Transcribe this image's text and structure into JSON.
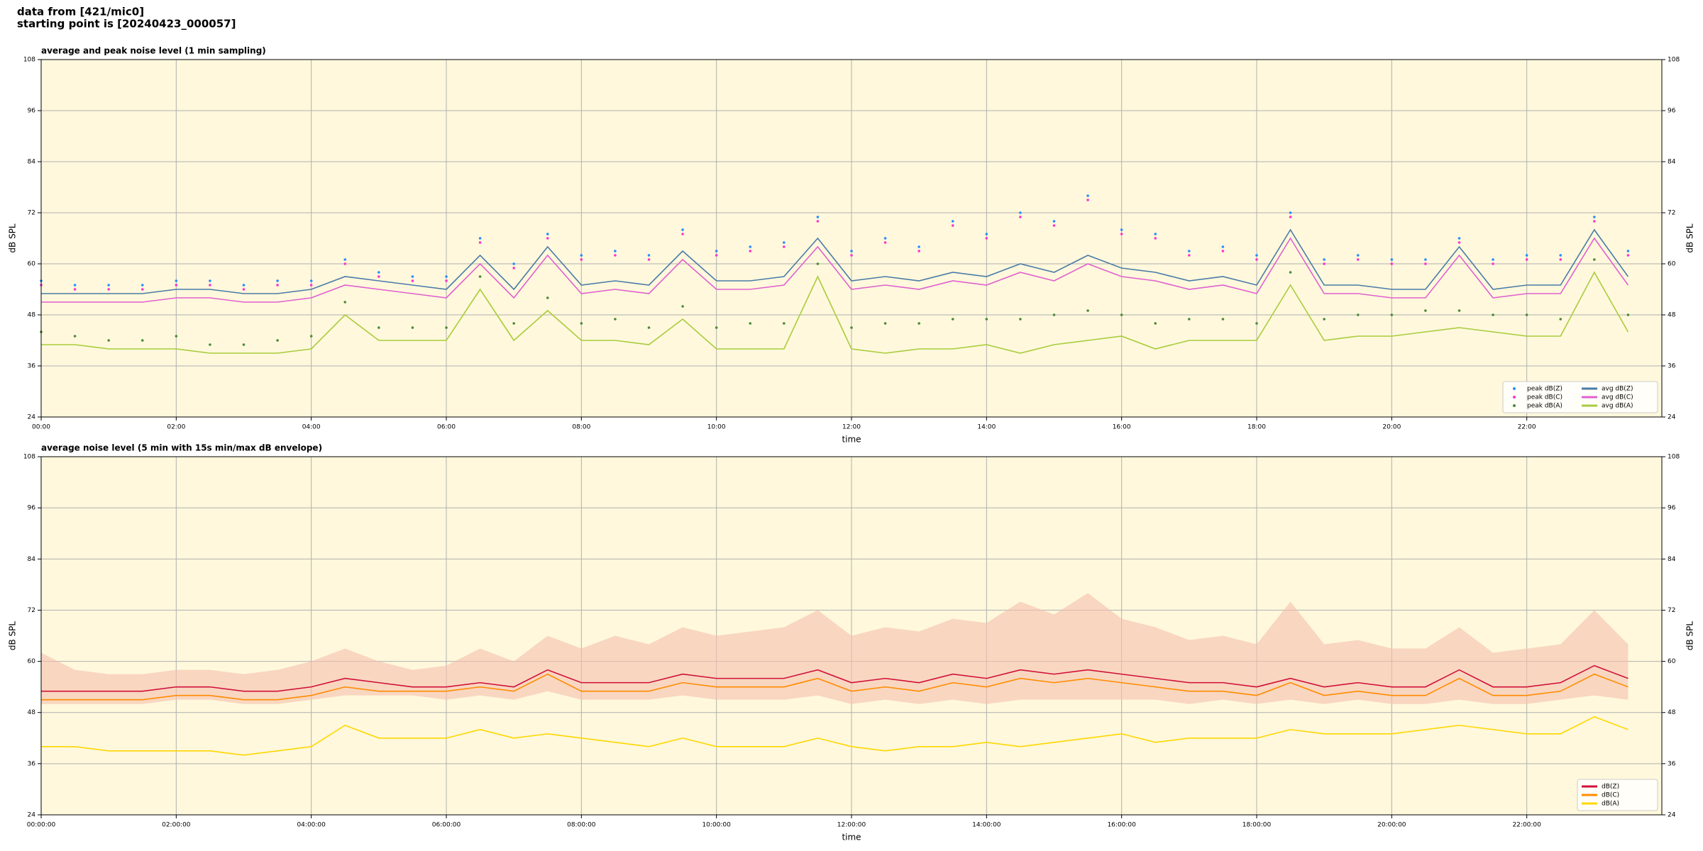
{
  "header": {
    "lines": [
      "data from [421/mic0]",
      "starting point is [20240423_000057]"
    ]
  },
  "chart_data": [
    {
      "type": "line",
      "title": "average and peak noise level (1 min sampling)",
      "xlabel": "time",
      "ylabel": "dB SPL",
      "x": [
        0,
        0.5,
        1,
        1.5,
        2,
        2.5,
        3,
        3.5,
        4,
        4.5,
        5,
        5.5,
        6,
        6.5,
        7,
        7.5,
        8,
        8.5,
        9,
        9.5,
        10,
        10.5,
        11,
        11.5,
        12,
        12.5,
        13,
        13.5,
        14,
        14.5,
        15,
        15.5,
        16,
        16.5,
        17,
        17.5,
        18,
        18.5,
        19,
        19.5,
        20,
        20.5,
        21,
        21.5,
        22,
        22.5,
        23,
        23.5
      ],
      "xlim": [
        0,
        24
      ],
      "xticks": [
        {
          "value": 0,
          "label": "00:00"
        },
        {
          "value": 2,
          "label": "02:00"
        },
        {
          "value": 4,
          "label": "04:00"
        },
        {
          "value": 6,
          "label": "06:00"
        },
        {
          "value": 8,
          "label": "08:00"
        },
        {
          "value": 10,
          "label": "10:00"
        },
        {
          "value": 12,
          "label": "12:00"
        },
        {
          "value": 14,
          "label": "14:00"
        },
        {
          "value": 16,
          "label": "16:00"
        },
        {
          "value": 18,
          "label": "18:00"
        },
        {
          "value": 20,
          "label": "20:00"
        },
        {
          "value": 22,
          "label": "22:00"
        }
      ],
      "ylim": [
        24,
        108
      ],
      "yticks": [
        24,
        36,
        48,
        60,
        72,
        84,
        96,
        108
      ],
      "grid": true,
      "legend": "lower right",
      "legend_columns": 2,
      "series": [
        {
          "name": "peak dB(Z)",
          "kind": "scatter",
          "color": "#2a8cff",
          "values": [
            56,
            55,
            55,
            55,
            56,
            56,
            55,
            56,
            56,
            61,
            58,
            57,
            57,
            66,
            60,
            67,
            62,
            63,
            62,
            68,
            63,
            64,
            65,
            71,
            63,
            66,
            64,
            70,
            67,
            72,
            70,
            76,
            68,
            67,
            63,
            64,
            62,
            72,
            61,
            62,
            61,
            61,
            66,
            61,
            62,
            62,
            71,
            63
          ]
        },
        {
          "name": "peak dB(C)",
          "kind": "scatter",
          "color": "#ff33cc",
          "values": [
            55,
            54,
            54,
            54,
            55,
            55,
            54,
            55,
            55,
            60,
            57,
            56,
            56,
            65,
            59,
            66,
            61,
            62,
            61,
            67,
            62,
            63,
            64,
            70,
            62,
            65,
            63,
            69,
            66,
            71,
            69,
            75,
            67,
            66,
            62,
            63,
            61,
            71,
            60,
            61,
            60,
            60,
            65,
            60,
            61,
            61,
            70,
            62
          ]
        },
        {
          "name": "peak dB(A)",
          "kind": "scatter",
          "color": "#4a8a3a",
          "values": [
            44,
            43,
            42,
            42,
            43,
            41,
            41,
            42,
            43,
            51,
            45,
            45,
            45,
            57,
            46,
            52,
            46,
            47,
            45,
            50,
            45,
            46,
            46,
            60,
            45,
            46,
            46,
            47,
            47,
            47,
            48,
            49,
            48,
            46,
            47,
            47,
            46,
            58,
            47,
            48,
            48,
            49,
            49,
            48,
            48,
            47,
            61,
            48
          ]
        },
        {
          "name": "avg dB(Z)",
          "kind": "line",
          "color": "#4a7ba8",
          "values": [
            53,
            53,
            53,
            53,
            54,
            54,
            53,
            53,
            54,
            57,
            56,
            55,
            54,
            62,
            54,
            64,
            55,
            56,
            55,
            63,
            56,
            56,
            57,
            66,
            56,
            57,
            56,
            58,
            57,
            60,
            58,
            62,
            59,
            58,
            56,
            57,
            55,
            68,
            55,
            55,
            54,
            54,
            64,
            54,
            55,
            55,
            68,
            57
          ]
        },
        {
          "name": "avg dB(C)",
          "kind": "line",
          "color": "#e060d0",
          "values": [
            51,
            51,
            51,
            51,
            52,
            52,
            51,
            51,
            52,
            55,
            54,
            53,
            52,
            60,
            52,
            62,
            53,
            54,
            53,
            61,
            54,
            54,
            55,
            64,
            54,
            55,
            54,
            56,
            55,
            58,
            56,
            60,
            57,
            56,
            54,
            55,
            53,
            66,
            53,
            53,
            52,
            52,
            62,
            52,
            53,
            53,
            66,
            55
          ]
        },
        {
          "name": "avg dB(A)",
          "kind": "line",
          "color": "#a8cc3c",
          "values": [
            41,
            41,
            40,
            40,
            40,
            39,
            39,
            39,
            40,
            48,
            42,
            42,
            42,
            54,
            42,
            49,
            42,
            42,
            41,
            47,
            40,
            40,
            40,
            57,
            40,
            39,
            40,
            40,
            41,
            39,
            41,
            42,
            43,
            40,
            42,
            42,
            42,
            55,
            42,
            43,
            43,
            44,
            45,
            44,
            43,
            43,
            58,
            44
          ]
        }
      ]
    },
    {
      "type": "line",
      "title": "average noise level (5 min with 15s min/max dB envelope)",
      "xlabel": "time",
      "ylabel": "dB SPL",
      "x": [
        0,
        0.5,
        1,
        1.5,
        2,
        2.5,
        3,
        3.5,
        4,
        4.5,
        5,
        5.5,
        6,
        6.5,
        7,
        7.5,
        8,
        8.5,
        9,
        9.5,
        10,
        10.5,
        11,
        11.5,
        12,
        12.5,
        13,
        13.5,
        14,
        14.5,
        15,
        15.5,
        16,
        16.5,
        17,
        17.5,
        18,
        18.5,
        19,
        19.5,
        20,
        20.5,
        21,
        21.5,
        22,
        22.5,
        23,
        23.5
      ],
      "xlim": [
        0,
        24
      ],
      "xticks": [
        {
          "value": 0,
          "label": "00:00:00"
        },
        {
          "value": 2,
          "label": "02:00:00"
        },
        {
          "value": 4,
          "label": "04:00:00"
        },
        {
          "value": 6,
          "label": "06:00:00"
        },
        {
          "value": 8,
          "label": "08:00:00"
        },
        {
          "value": 10,
          "label": "10:00:00"
        },
        {
          "value": 12,
          "label": "12:00:00"
        },
        {
          "value": 14,
          "label": "14:00:00"
        },
        {
          "value": 16,
          "label": "16:00:00"
        },
        {
          "value": 18,
          "label": "18:00:00"
        },
        {
          "value": 20,
          "label": "20:00:00"
        },
        {
          "value": 22,
          "label": "22:00:00"
        }
      ],
      "ylim": [
        24,
        108
      ],
      "yticks": [
        24,
        36,
        48,
        60,
        72,
        84,
        96,
        108
      ],
      "grid": true,
      "legend": "lower right",
      "legend_columns": 1,
      "envelope": {
        "color": "#f5bfae",
        "low": [
          50,
          50,
          50,
          50,
          51,
          51,
          50,
          50,
          51,
          52,
          52,
          52,
          51,
          52,
          51,
          53,
          51,
          51,
          51,
          52,
          51,
          51,
          51,
          52,
          50,
          51,
          50,
          51,
          50,
          51,
          51,
          51,
          51,
          51,
          50,
          51,
          50,
          51,
          50,
          51,
          50,
          50,
          51,
          50,
          50,
          51,
          52,
          51
        ],
        "high": [
          62,
          58,
          57,
          57,
          58,
          58,
          57,
          58,
          60,
          63,
          60,
          58,
          59,
          63,
          60,
          66,
          63,
          66,
          64,
          68,
          66,
          67,
          68,
          72,
          66,
          68,
          67,
          70,
          69,
          74,
          71,
          76,
          70,
          68,
          65,
          66,
          64,
          74,
          64,
          65,
          63,
          63,
          68,
          62,
          63,
          64,
          72,
          64
        ]
      },
      "series": [
        {
          "name": "dB(Z)",
          "kind": "line",
          "color": "#d0103a",
          "values": [
            53,
            53,
            53,
            53,
            54,
            54,
            53,
            53,
            54,
            56,
            55,
            54,
            54,
            55,
            54,
            58,
            55,
            55,
            55,
            57,
            56,
            56,
            56,
            58,
            55,
            56,
            55,
            57,
            56,
            58,
            57,
            58,
            57,
            56,
            55,
            55,
            54,
            56,
            54,
            55,
            54,
            54,
            58,
            54,
            54,
            55,
            59,
            56
          ]
        },
        {
          "name": "dB(C)",
          "kind": "line",
          "color": "#ff8c00",
          "values": [
            51,
            51,
            51,
            51,
            52,
            52,
            51,
            51,
            52,
            54,
            53,
            53,
            53,
            54,
            53,
            57,
            53,
            53,
            53,
            55,
            54,
            54,
            54,
            56,
            53,
            54,
            53,
            55,
            54,
            56,
            55,
            56,
            55,
            54,
            53,
            53,
            52,
            55,
            52,
            53,
            52,
            52,
            56,
            52,
            52,
            53,
            57,
            54
          ]
        },
        {
          "name": "dB(A)",
          "kind": "line",
          "color": "#ffd700",
          "values": [
            40,
            40,
            39,
            39,
            39,
            39,
            38,
            39,
            40,
            45,
            42,
            42,
            42,
            44,
            42,
            43,
            42,
            41,
            40,
            42,
            40,
            40,
            40,
            42,
            40,
            39,
            40,
            40,
            41,
            40,
            41,
            42,
            43,
            41,
            42,
            42,
            42,
            44,
            43,
            43,
            43,
            44,
            45,
            44,
            43,
            43,
            47,
            44
          ]
        }
      ]
    }
  ]
}
